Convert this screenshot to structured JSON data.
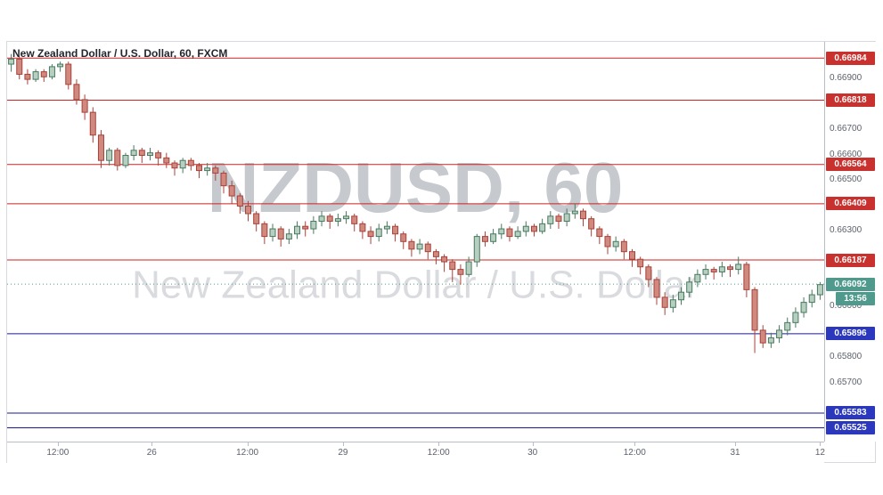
{
  "header": {
    "title": "New Zealand Dollar / U.S. Dollar, 60, FXCM"
  },
  "watermark": {
    "line1": "NZDUSD, 60",
    "line2": "New Zealand Dollar / U.S. Dollar"
  },
  "colors": {
    "red_line": "#cc2222",
    "red_badge": "#c8312e",
    "blue_line": "#1a1a96",
    "blue_badge": "#2b38bd",
    "teal": "#4f9a8d",
    "up_border": "#49795f",
    "up_fill": "#b7cfc0",
    "down_border": "#a8423a",
    "down_fill": "#d0897f",
    "axis_text": "#5c616b",
    "watermark1": "#c6c9ce",
    "watermark2": "#d9dbdf"
  },
  "price_axis_plain": [
    {
      "p": 0.669,
      "t": "0.66900"
    },
    {
      "p": 0.667,
      "t": "0.66700"
    },
    {
      "p": 0.666,
      "t": "0.66600"
    },
    {
      "p": 0.665,
      "t": "0.66500"
    },
    {
      "p": 0.663,
      "t": "0.66300"
    },
    {
      "p": 0.66,
      "t": "0.66000"
    },
    {
      "p": 0.658,
      "t": "0.65800"
    },
    {
      "p": 0.657,
      "t": "0.65700"
    }
  ],
  "time_axis": [
    {
      "f": 0.062,
      "t": "12:00"
    },
    {
      "f": 0.177,
      "t": "26"
    },
    {
      "f": 0.294,
      "t": "12:00"
    },
    {
      "f": 0.411,
      "t": "29"
    },
    {
      "f": 0.528,
      "t": "12:00"
    },
    {
      "f": 0.643,
      "t": "30"
    },
    {
      "f": 0.768,
      "t": "12:00"
    },
    {
      "f": 0.891,
      "t": "31"
    },
    {
      "f": 0.995,
      "t": "12"
    }
  ],
  "chart_data": {
    "type": "candlestick",
    "symbol": "NZDUSD",
    "timeframe": "60",
    "exchange": "FXCM",
    "title": "New Zealand Dollar / U.S. Dollar, 60, FXCM",
    "ylim": [
      0.65474,
      0.67048
    ],
    "grid": false,
    "levels": [
      {
        "price": 0.66984,
        "label": "0.66984",
        "color": "red"
      },
      {
        "price": 0.66818,
        "label": "0.66818",
        "color": "red"
      },
      {
        "price": 0.66564,
        "label": "0.66564",
        "color": "red"
      },
      {
        "price": 0.66409,
        "label": "0.66409",
        "color": "red"
      },
      {
        "price": 0.66187,
        "label": "0.66187",
        "color": "red"
      },
      {
        "price": 0.65896,
        "label": "0.65896",
        "color": "blue"
      },
      {
        "price": 0.65583,
        "label": "0.65583",
        "color": "blue"
      },
      {
        "price": 0.65525,
        "label": "0.65525",
        "color": "blue"
      }
    ],
    "current": {
      "price": 0.66092,
      "label": "0.66092",
      "time": "13:56"
    },
    "candles": [
      [
        0.6696,
        0.67,
        0.6693,
        0.6698
      ],
      [
        0.6698,
        0.6699,
        0.669,
        0.6692
      ],
      [
        0.6692,
        0.6694,
        0.6688,
        0.669
      ],
      [
        0.669,
        0.6694,
        0.6689,
        0.6693
      ],
      [
        0.6693,
        0.6694,
        0.6689,
        0.6691
      ],
      [
        0.6691,
        0.6696,
        0.669,
        0.6695
      ],
      [
        0.6695,
        0.6697,
        0.6693,
        0.6696
      ],
      [
        0.6696,
        0.6697,
        0.6686,
        0.6688
      ],
      [
        0.6688,
        0.669,
        0.668,
        0.6682
      ],
      [
        0.6682,
        0.6684,
        0.6674,
        0.6677
      ],
      [
        0.6677,
        0.6679,
        0.6665,
        0.6668
      ],
      [
        0.6668,
        0.667,
        0.6655,
        0.6658
      ],
      [
        0.6658,
        0.6663,
        0.6656,
        0.6662
      ],
      [
        0.6662,
        0.6663,
        0.6654,
        0.6656
      ],
      [
        0.6656,
        0.6661,
        0.6655,
        0.666
      ],
      [
        0.666,
        0.6664,
        0.6658,
        0.6662
      ],
      [
        0.6662,
        0.6663,
        0.6657,
        0.666
      ],
      [
        0.666,
        0.6663,
        0.6658,
        0.6661
      ],
      [
        0.6661,
        0.6662,
        0.6656,
        0.6659
      ],
      [
        0.6659,
        0.6661,
        0.6655,
        0.6657
      ],
      [
        0.6657,
        0.6658,
        0.6652,
        0.6655
      ],
      [
        0.6655,
        0.6659,
        0.6653,
        0.6658
      ],
      [
        0.6658,
        0.6659,
        0.6654,
        0.6656
      ],
      [
        0.6656,
        0.6657,
        0.6651,
        0.6654
      ],
      [
        0.6654,
        0.6657,
        0.6652,
        0.6655
      ],
      [
        0.6655,
        0.6656,
        0.665,
        0.6653
      ],
      [
        0.6653,
        0.6654,
        0.6645,
        0.6648
      ],
      [
        0.6648,
        0.665,
        0.6641,
        0.6644
      ],
      [
        0.6644,
        0.6645,
        0.6637,
        0.664
      ],
      [
        0.664,
        0.6642,
        0.6634,
        0.6637
      ],
      [
        0.6637,
        0.6638,
        0.663,
        0.6633
      ],
      [
        0.6633,
        0.6634,
        0.6625,
        0.6628
      ],
      [
        0.6628,
        0.6633,
        0.6626,
        0.6631
      ],
      [
        0.6631,
        0.6632,
        0.6624,
        0.6627
      ],
      [
        0.6627,
        0.6631,
        0.6625,
        0.6629
      ],
      [
        0.6629,
        0.6634,
        0.6627,
        0.6632
      ],
      [
        0.6632,
        0.6634,
        0.6628,
        0.6631
      ],
      [
        0.6631,
        0.6636,
        0.6629,
        0.6634
      ],
      [
        0.6634,
        0.6638,
        0.6632,
        0.6636
      ],
      [
        0.6636,
        0.6637,
        0.6631,
        0.6634
      ],
      [
        0.6634,
        0.6637,
        0.6632,
        0.6635
      ],
      [
        0.6635,
        0.6638,
        0.6633,
        0.6636
      ],
      [
        0.6636,
        0.6637,
        0.663,
        0.6633
      ],
      [
        0.6633,
        0.6634,
        0.6627,
        0.663
      ],
      [
        0.663,
        0.6632,
        0.6625,
        0.6628
      ],
      [
        0.6628,
        0.6633,
        0.6626,
        0.6631
      ],
      [
        0.6631,
        0.6634,
        0.6629,
        0.6632
      ],
      [
        0.6632,
        0.6633,
        0.6626,
        0.6629
      ],
      [
        0.6629,
        0.663,
        0.6623,
        0.6626
      ],
      [
        0.6626,
        0.6627,
        0.662,
        0.6623
      ],
      [
        0.6623,
        0.6627,
        0.6621,
        0.6625
      ],
      [
        0.6625,
        0.6626,
        0.6619,
        0.6622
      ],
      [
        0.6622,
        0.6623,
        0.6617,
        0.662
      ],
      [
        0.662,
        0.6621,
        0.6614,
        0.6618
      ],
      [
        0.6618,
        0.6619,
        0.661,
        0.6615
      ],
      [
        0.6615,
        0.6617,
        0.6609,
        0.6613
      ],
      [
        0.6613,
        0.662,
        0.6612,
        0.6618
      ],
      [
        0.6618,
        0.6629,
        0.6616,
        0.6628
      ],
      [
        0.6628,
        0.663,
        0.6624,
        0.6626
      ],
      [
        0.6626,
        0.6631,
        0.6625,
        0.6629
      ],
      [
        0.6629,
        0.6633,
        0.6627,
        0.6631
      ],
      [
        0.6631,
        0.6632,
        0.6626,
        0.6628
      ],
      [
        0.6628,
        0.6632,
        0.6627,
        0.663
      ],
      [
        0.663,
        0.6634,
        0.6628,
        0.6632
      ],
      [
        0.6632,
        0.6633,
        0.6628,
        0.663
      ],
      [
        0.663,
        0.6635,
        0.6629,
        0.6633
      ],
      [
        0.6633,
        0.6638,
        0.6631,
        0.6636
      ],
      [
        0.6636,
        0.6637,
        0.6631,
        0.6634
      ],
      [
        0.6634,
        0.6639,
        0.6632,
        0.6637
      ],
      [
        0.6637,
        0.6641,
        0.6635,
        0.6638
      ],
      [
        0.6638,
        0.6639,
        0.6632,
        0.6635
      ],
      [
        0.6635,
        0.6636,
        0.6628,
        0.6631
      ],
      [
        0.6631,
        0.6632,
        0.6625,
        0.6628
      ],
      [
        0.6628,
        0.6629,
        0.6621,
        0.6624
      ],
      [
        0.6624,
        0.6628,
        0.6622,
        0.6626
      ],
      [
        0.6626,
        0.6627,
        0.6619,
        0.6622
      ],
      [
        0.6622,
        0.6623,
        0.6616,
        0.6619
      ],
      [
        0.6619,
        0.662,
        0.6613,
        0.6616
      ],
      [
        0.6616,
        0.6617,
        0.6608,
        0.6611
      ],
      [
        0.6611,
        0.6612,
        0.6601,
        0.6604
      ],
      [
        0.6604,
        0.6606,
        0.6597,
        0.66
      ],
      [
        0.66,
        0.6605,
        0.6598,
        0.6603
      ],
      [
        0.6603,
        0.6608,
        0.6601,
        0.6606
      ],
      [
        0.6606,
        0.6612,
        0.6604,
        0.661
      ],
      [
        0.661,
        0.6615,
        0.6608,
        0.6613
      ],
      [
        0.6613,
        0.6617,
        0.6611,
        0.6615
      ],
      [
        0.6615,
        0.6616,
        0.6611,
        0.6614
      ],
      [
        0.6614,
        0.6618,
        0.6612,
        0.6616
      ],
      [
        0.6616,
        0.6617,
        0.6612,
        0.6615
      ],
      [
        0.6615,
        0.662,
        0.6613,
        0.6617
      ],
      [
        0.6617,
        0.6618,
        0.6604,
        0.6607
      ],
      [
        0.6607,
        0.6608,
        0.6582,
        0.6591
      ],
      [
        0.6591,
        0.6593,
        0.6584,
        0.6586
      ],
      [
        0.6586,
        0.659,
        0.6584,
        0.6588
      ],
      [
        0.6588,
        0.6593,
        0.6586,
        0.6591
      ],
      [
        0.6591,
        0.6596,
        0.6589,
        0.6594
      ],
      [
        0.6594,
        0.66,
        0.6592,
        0.6598
      ],
      [
        0.6598,
        0.6604,
        0.6596,
        0.6602
      ],
      [
        0.6602,
        0.6607,
        0.66,
        0.6605
      ],
      [
        0.6605,
        0.661,
        0.6603,
        0.6609
      ]
    ]
  }
}
